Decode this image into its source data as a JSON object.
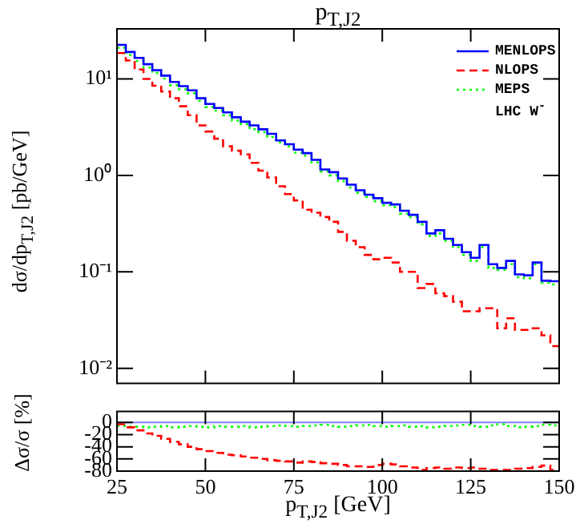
{
  "chart_data": [
    {
      "type": "histogram",
      "title": "p$_{T,J2}$",
      "ylabel": "dσ/dp$_{T,J2}$ [pb/GeV]",
      "log": "y",
      "tick_labels": "y",
      "legend": "top right",
      "annotations": [
        "LHC W$^{-}$"
      ],
      "bins": [
        25,
        27.5,
        30,
        32.5,
        35,
        37.5,
        40,
        42.5,
        45,
        47.5,
        50,
        52.5,
        55,
        57.5,
        60,
        62.5,
        65,
        67.5,
        70,
        72.5,
        75,
        77.5,
        80,
        82.5,
        85,
        87.5,
        90,
        92.5,
        95,
        97.5,
        100,
        102.5,
        105,
        107.5,
        110,
        112.5,
        115,
        117.5,
        120,
        122.5,
        125,
        127.5,
        130,
        132.5,
        135,
        137.5,
        140,
        142.5,
        145,
        147.5,
        150
      ],
      "xlim": [
        25,
        150
      ],
      "xticks": [
        25,
        50,
        75,
        100,
        125,
        150
      ],
      "ylim": [
        0.007,
        33
      ],
      "yticks": [
        {
          "value": 0.01,
          "label": "10⁻²"
        },
        {
          "value": 0.1,
          "label": "10⁻¹"
        },
        {
          "value": 1,
          "label": "10⁰"
        },
        {
          "value": 10,
          "label": "10¹"
        }
      ],
      "series": [
        {
          "name": "MENLOPS",
          "color": "#0000ff",
          "line_style": "solid",
          "values": [
            22.5,
            19,
            16.5,
            14.2,
            12.3,
            10.8,
            9.3,
            8.4,
            7.6,
            6.3,
            5.5,
            5.0,
            4.5,
            4.0,
            3.6,
            3.3,
            3.0,
            2.7,
            2.3,
            2.1,
            1.85,
            1.7,
            1.45,
            1.15,
            1.08,
            0.93,
            0.8,
            0.7,
            0.63,
            0.58,
            0.52,
            0.5,
            0.43,
            0.39,
            0.33,
            0.25,
            0.27,
            0.22,
            0.19,
            0.16,
            0.14,
            0.19,
            0.12,
            0.11,
            0.13,
            0.094,
            0.092,
            0.125,
            0.081,
            0.08
          ]
        },
        {
          "name": "NLOPS",
          "color": "#ff0000",
          "line_style": "dashed",
          "values": [
            18.5,
            15.5,
            12.5,
            10,
            8.5,
            7.4,
            6.3,
            5.2,
            4.2,
            3.3,
            2.85,
            2.4,
            2.0,
            1.8,
            1.65,
            1.35,
            1.12,
            0.95,
            0.77,
            0.64,
            0.55,
            0.44,
            0.41,
            0.37,
            0.33,
            0.26,
            0.21,
            0.18,
            0.15,
            0.135,
            0.14,
            0.125,
            0.1,
            0.1,
            0.068,
            0.075,
            0.06,
            0.056,
            0.049,
            0.039,
            0.039,
            0.042,
            0.042,
            0.026,
            0.033,
            0.025,
            0.025,
            0.026,
            0.022,
            0.017
          ]
        },
        {
          "name": "MEPS",
          "color": "#00ff00",
          "line_style": "dotted",
          "values": [
            21,
            17.7,
            15.3,
            13.1,
            11.5,
            10.1,
            8.6,
            7.8,
            7.1,
            5.9,
            5.1,
            4.7,
            4.2,
            3.7,
            3.4,
            3.0,
            2.8,
            2.5,
            2.2,
            2.0,
            1.72,
            1.6,
            1.36,
            1.1,
            1.0,
            0.87,
            0.75,
            0.66,
            0.6,
            0.54,
            0.49,
            0.47,
            0.4,
            0.37,
            0.31,
            0.235,
            0.25,
            0.21,
            0.18,
            0.15,
            0.13,
            0.18,
            0.11,
            0.105,
            0.12,
            0.088,
            0.086,
            0.12,
            0.077,
            0.074
          ]
        }
      ]
    },
    {
      "type": "histogram",
      "xlabel": "p$_{T,J2}$ [GeV]",
      "ylabel": "Δσ/σ [%]",
      "bins": [
        25,
        27.5,
        30,
        32.5,
        35,
        37.5,
        40,
        42.5,
        45,
        47.5,
        50,
        52.5,
        55,
        57.5,
        60,
        62.5,
        65,
        67.5,
        70,
        72.5,
        75,
        77.5,
        80,
        82.5,
        85,
        87.5,
        90,
        92.5,
        95,
        97.5,
        100,
        102.5,
        105,
        107.5,
        110,
        112.5,
        115,
        117.5,
        120,
        122.5,
        125,
        127.5,
        130,
        132.5,
        135,
        137.5,
        140,
        142.5,
        145,
        147.5,
        150
      ],
      "xlim": [
        25,
        150
      ],
      "xticks": [
        25,
        50,
        75,
        100,
        125,
        150
      ],
      "ylim": [
        -80,
        18
      ],
      "yticks": [
        -80,
        -60,
        -40,
        -20,
        0
      ],
      "ref_lines": [
        {
          "axis": "y",
          "value": 0,
          "color": "#8080ff"
        }
      ],
      "series": [
        {
          "color": "#ff0000",
          "line_style": "dashed",
          "values": [
            -3,
            -8,
            -13,
            -18,
            -22,
            -27,
            -32,
            -36,
            -40,
            -44,
            -47,
            -50,
            -53,
            -54,
            -56,
            -58,
            -60,
            -62,
            -63,
            -64,
            -66,
            -64,
            -65,
            -67,
            -68,
            -70,
            -72,
            -72,
            -73,
            -70,
            -68,
            -69,
            -72,
            -74,
            -78,
            -75,
            -74,
            -76,
            -74,
            -75,
            -74,
            -76,
            -78,
            -78,
            -78,
            -76,
            -75,
            -73,
            -71,
            -78
          ]
        },
        {
          "color": "#00ff00",
          "line_style": "dotted",
          "values": [
            -6,
            -7,
            -7,
            -8,
            -7,
            -6,
            -8,
            -7,
            -6,
            -7,
            -8,
            -6,
            -7,
            -7,
            -6,
            -8,
            -7,
            -6,
            -5,
            -6,
            -7,
            -6,
            -5,
            -4,
            -6,
            -7,
            -6,
            -5,
            -4,
            -6,
            -7,
            -6,
            -5,
            -7,
            -6,
            -8,
            -7,
            -6,
            -5,
            -4,
            -6,
            -7,
            -5,
            -3,
            -6,
            -8,
            -7,
            -6,
            -4,
            -5
          ]
        }
      ]
    }
  ]
}
